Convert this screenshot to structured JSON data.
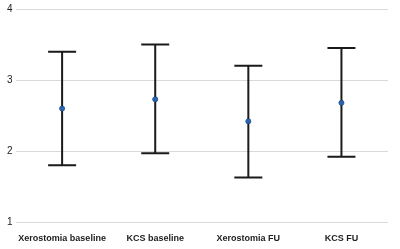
{
  "chart_data": {
    "type": "errorbar",
    "categories": [
      "Xerostomia baseline",
      "KCS baseline",
      "Xerostomia FU",
      "KCS FU"
    ],
    "values": [
      2.6,
      2.73,
      2.42,
      2.68
    ],
    "lower": [
      1.8,
      1.97,
      1.63,
      1.92
    ],
    "upper": [
      3.4,
      3.5,
      3.2,
      3.45
    ],
    "color": "#2a63a8",
    "ylim": [
      1,
      4
    ],
    "yticks": [
      1,
      2,
      3,
      4
    ],
    "grid": true
  }
}
